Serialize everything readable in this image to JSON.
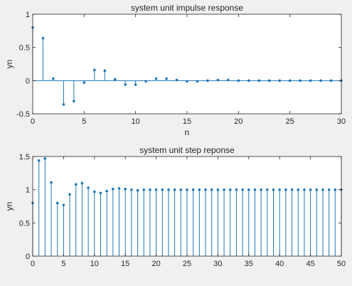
{
  "figure": {
    "background": "#f0f0f0",
    "axes_background": "#ffffff",
    "stem_color": "#1f77b4",
    "axis_color": "#262626"
  },
  "chart_data": [
    {
      "type": "stem",
      "title": "system unit impulse response",
      "xlabel": "n",
      "ylabel": "yn",
      "xlim": [
        0,
        30
      ],
      "ylim": [
        -0.5,
        1
      ],
      "xticks": [
        0,
        5,
        10,
        15,
        20,
        25,
        30
      ],
      "yticks": [
        -0.5,
        0,
        0.5,
        1
      ],
      "ytick_labels": [
        "-0.5",
        "0",
        "0.5",
        "1"
      ],
      "x": [
        0,
        1,
        2,
        3,
        4,
        5,
        6,
        7,
        8,
        9,
        10,
        11,
        12,
        13,
        14,
        15,
        16,
        17,
        18,
        19,
        20,
        21,
        22,
        23,
        24,
        25,
        26,
        27,
        28,
        29,
        30
      ],
      "values": [
        0.8,
        0.64,
        0.03,
        -0.36,
        -0.31,
        -0.03,
        0.16,
        0.15,
        0.02,
        -0.06,
        -0.06,
        -0.01,
        0.03,
        0.03,
        0.01,
        -0.01,
        -0.01,
        0.0,
        0.01,
        0.01,
        0.0,
        0.0,
        0.0,
        0.0,
        0.0,
        0.0,
        0.0,
        0.0,
        0.0,
        0.0,
        0.0
      ]
    },
    {
      "type": "stem",
      "title": "system unit step reponse",
      "xlabel": "",
      "ylabel": "yn",
      "xlim": [
        0,
        50
      ],
      "ylim": [
        0,
        1.5
      ],
      "xticks": [
        0,
        5,
        10,
        15,
        20,
        25,
        30,
        35,
        40,
        45,
        50
      ],
      "yticks": [
        0,
        0.5,
        1,
        1.5
      ],
      "ytick_labels": [
        "0",
        "0.5",
        "1",
        "1.5"
      ],
      "x": [
        0,
        1,
        2,
        3,
        4,
        5,
        6,
        7,
        8,
        9,
        10,
        11,
        12,
        13,
        14,
        15,
        16,
        17,
        18,
        19,
        20,
        21,
        22,
        23,
        24,
        25,
        26,
        27,
        28,
        29,
        30,
        31,
        32,
        33,
        34,
        35,
        36,
        37,
        38,
        39,
        40,
        41,
        42,
        43,
        44,
        45,
        46,
        47,
        48,
        49,
        50
      ],
      "values": [
        0.8,
        1.44,
        1.47,
        1.11,
        0.8,
        0.77,
        0.93,
        1.08,
        1.1,
        1.03,
        0.97,
        0.95,
        0.98,
        1.01,
        1.02,
        1.01,
        1.0,
        0.99,
        1.0,
        1.0,
        1.0,
        1.0,
        1.0,
        1.0,
        1.0,
        1.0,
        1.0,
        1.0,
        1.0,
        1.0,
        1.0,
        1.0,
        1.0,
        1.0,
        1.0,
        1.0,
        1.0,
        1.0,
        1.0,
        1.0,
        1.0,
        1.0,
        1.0,
        1.0,
        1.0,
        1.0,
        1.0,
        1.0,
        1.0,
        1.0,
        1.0
      ]
    }
  ]
}
